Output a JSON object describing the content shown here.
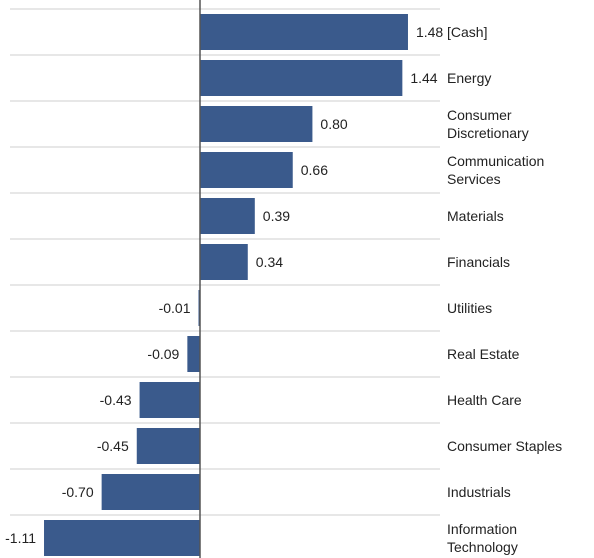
{
  "chart_data": {
    "type": "bar",
    "orientation": "horizontal",
    "categories": [
      [
        "[Cash]"
      ],
      [
        "Energy"
      ],
      [
        "Consumer",
        "Discretionary"
      ],
      [
        "Communication",
        "Services"
      ],
      [
        "Materials"
      ],
      [
        "Financials"
      ],
      [
        "Utilities"
      ],
      [
        "Real Estate"
      ],
      [
        "Health Care"
      ],
      [
        "Consumer Staples"
      ],
      [
        "Industrials"
      ],
      [
        "Information",
        "Technology"
      ]
    ],
    "values": [
      1.48,
      1.44,
      0.8,
      0.66,
      0.39,
      0.34,
      -0.01,
      -0.09,
      -0.43,
      -0.45,
      -0.7,
      -1.11
    ],
    "value_labels": [
      "1.48",
      "1.44",
      "0.80",
      "0.66",
      "0.39",
      "0.34",
      "-0.01",
      "-0.09",
      "-0.43",
      "-0.45",
      "-0.70",
      "-1.11"
    ],
    "xlim": [
      -1.26,
      1.8
    ],
    "title": "",
    "xlabel": "",
    "ylabel": "",
    "grid": "horizontal row separators",
    "legend": "none",
    "colors": {
      "bar": "#3a5a8c",
      "grid": "#cfcfcf",
      "axis": "#555555",
      "text": "#222222"
    }
  }
}
